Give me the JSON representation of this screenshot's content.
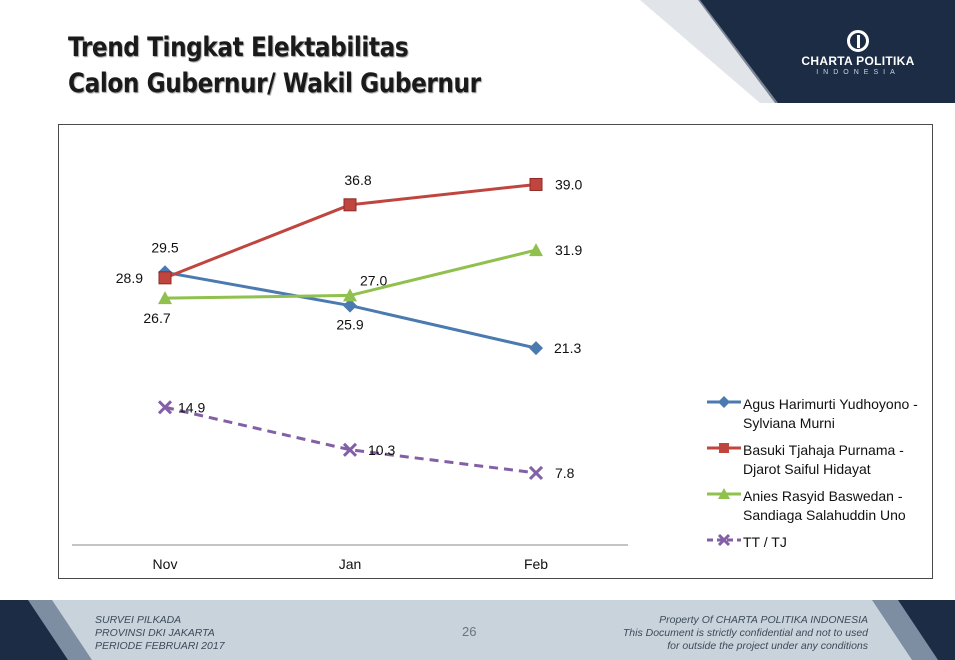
{
  "header": {
    "title_line1": "Trend Tingkat Elektabilitas",
    "title_line2": "Calon Gubernur/ Wakil Gubernur"
  },
  "brand": {
    "name": "CHARTA POLITIKA",
    "sub": "INDONESIA",
    "dark_color": "#1c2c44",
    "mid_color": "#5d6f85"
  },
  "chart_data": {
    "type": "line",
    "categories": [
      "Nov",
      "Jan",
      "Feb"
    ],
    "ylim": [
      0,
      45
    ],
    "grid": false,
    "legend_position": "right",
    "series": [
      {
        "name_line1": "Agus Harimurti Yudhoyono -",
        "name_line2": "Sylviana Murni",
        "values": [
          29.5,
          25.9,
          21.3
        ],
        "labels": [
          "29.5",
          "25.9",
          "21.3"
        ],
        "color": "#4a7ab0",
        "marker": "diamond",
        "dashed": false
      },
      {
        "name_line1": "Basuki Tjahaja Purnama -",
        "name_line2": "Djarot Saiful Hidayat",
        "values": [
          28.9,
          36.8,
          39.0
        ],
        "labels": [
          "28.9",
          "36.8",
          "39.0"
        ],
        "color": "#c0453f",
        "marker": "square",
        "dashed": false
      },
      {
        "name_line1": "Anies Rasyid Baswedan -",
        "name_line2": "Sandiaga Salahuddin Uno",
        "values": [
          26.7,
          27.0,
          31.9
        ],
        "labels": [
          "26.7",
          "27.0",
          "31.9"
        ],
        "color": "#90c04d",
        "marker": "triangle",
        "dashed": false
      },
      {
        "name_line1": "TT / TJ",
        "name_line2": "",
        "values": [
          14.9,
          10.3,
          7.8
        ],
        "labels": [
          "14.9",
          "10.3",
          "7.8"
        ],
        "color": "#8360a6",
        "marker": "x",
        "dashed": true
      }
    ]
  },
  "footer": {
    "left_line1": "SURVEI PILKADA",
    "left_line2": "PROVINSI DKI JAKARTA",
    "left_line3": "PERIODE FEBRUARI 2017",
    "page_number": "26",
    "right_line1": "Property Of CHARTA POLITIKA INDONESIA",
    "right_line2": "This Document is strictly confidential and not to used",
    "right_line3": "for outside the project under any conditions"
  }
}
